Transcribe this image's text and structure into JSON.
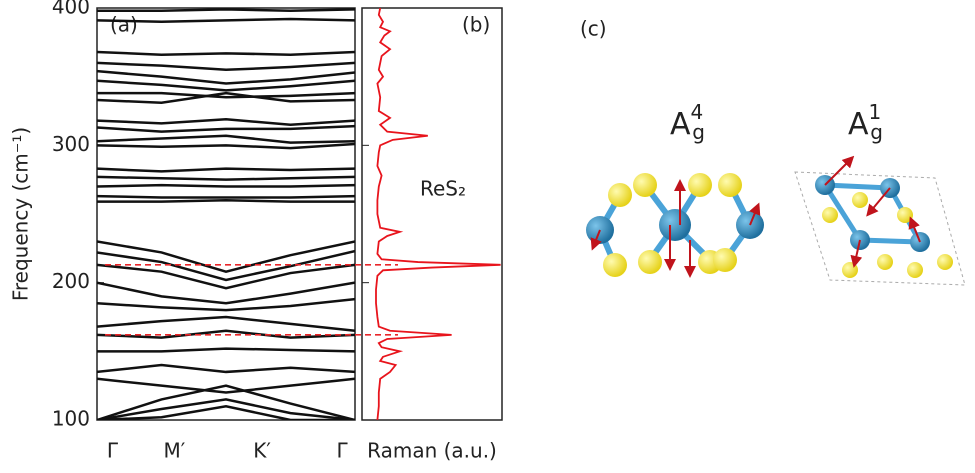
{
  "chart_data": [
    {
      "type": "bands",
      "panel_label": "(a)",
      "ylabel": "Frequency (cm⁻¹)",
      "ylim": [
        100,
        400
      ],
      "yticks": [
        100,
        200,
        300,
        400
      ],
      "xlim": [
        0,
        1
      ],
      "xticks": [
        {
          "value": 0.06,
          "label": "Γ"
        },
        {
          "value": 0.3,
          "label": "M′"
        },
        {
          "value": 0.64,
          "label": "K′"
        },
        {
          "value": 0.95,
          "label": "Γ"
        }
      ],
      "x": [
        0,
        0.25,
        0.5,
        0.75,
        1
      ],
      "color": "#111111",
      "bands": [
        [
          398,
          398,
          399,
          398,
          399
        ],
        [
          391,
          390,
          391,
          392,
          391
        ],
        [
          368,
          366,
          367,
          366,
          368
        ],
        [
          360,
          358,
          355,
          357,
          360
        ],
        [
          354,
          350,
          345,
          348,
          353
        ],
        [
          347,
          344,
          340,
          343,
          347
        ],
        [
          338,
          338,
          335,
          336,
          338
        ],
        [
          333,
          331,
          338,
          332,
          333
        ],
        [
          318,
          316,
          319,
          315,
          318
        ],
        [
          313,
          310,
          312,
          312,
          314
        ],
        [
          303,
          305,
          307,
          302,
          303
        ],
        [
          300,
          299,
          300,
          298,
          301
        ],
        [
          283,
          281,
          283,
          282,
          283
        ],
        [
          277,
          276,
          275,
          276,
          277
        ],
        [
          270,
          271,
          270,
          270,
          271
        ],
        [
          263,
          262,
          262,
          262,
          263
        ],
        [
          259,
          259,
          260,
          259,
          259
        ],
        [
          230,
          222,
          208,
          220,
          230
        ],
        [
          222,
          215,
          202,
          212,
          223
        ],
        [
          213,
          208,
          196,
          207,
          213
        ],
        [
          200,
          190,
          185,
          192,
          200
        ],
        [
          185,
          182,
          180,
          183,
          188
        ],
        [
          168,
          172,
          175,
          170,
          165
        ],
        [
          162,
          160,
          165,
          160,
          162
        ],
        [
          150,
          150,
          152,
          151,
          150
        ],
        [
          135,
          140,
          135,
          138,
          135
        ],
        [
          130,
          125,
          120,
          125,
          130
        ],
        [
          100,
          115,
          125,
          112,
          100
        ],
        [
          100,
          108,
          115,
          105,
          100
        ],
        [
          100,
          102,
          110,
          100,
          100
        ]
      ],
      "mode_lines": [
        213,
        162
      ],
      "mode_line_color": "#e8262a"
    },
    {
      "type": "spectrum",
      "panel_label": "(b)",
      "xlabel": "Raman (a.u.)",
      "annotation": "ReS₂",
      "ylim": [
        100,
        400
      ],
      "xlim": [
        0,
        1
      ],
      "color": "#e8141c",
      "frequencies": [
        100,
        110,
        120,
        130,
        135,
        140,
        143,
        146,
        150,
        153,
        156,
        159,
        162,
        165,
        168,
        175,
        185,
        195,
        205,
        209,
        211,
        213,
        215,
        217,
        221,
        230,
        234,
        237,
        240,
        250,
        260,
        270,
        278,
        285,
        295,
        300,
        304,
        307,
        310,
        315,
        320,
        325,
        335,
        345,
        350,
        355,
        365,
        370,
        375,
        380,
        383,
        386,
        390,
        395,
        400
      ],
      "intensities": [
        0.11,
        0.12,
        0.12,
        0.13,
        0.2,
        0.24,
        0.13,
        0.15,
        0.27,
        0.14,
        0.12,
        0.18,
        0.64,
        0.2,
        0.12,
        0.11,
        0.1,
        0.1,
        0.11,
        0.15,
        0.5,
        0.99,
        0.4,
        0.14,
        0.11,
        0.12,
        0.18,
        0.27,
        0.13,
        0.11,
        0.11,
        0.12,
        0.14,
        0.11,
        0.12,
        0.13,
        0.22,
        0.47,
        0.18,
        0.13,
        0.2,
        0.12,
        0.13,
        0.11,
        0.15,
        0.12,
        0.14,
        0.2,
        0.13,
        0.16,
        0.2,
        0.13,
        0.15,
        0.12,
        0.13
      ]
    }
  ],
  "panel_c": {
    "label": "(c)",
    "modes": [
      {
        "base": "A",
        "sup": "4",
        "sub": "g"
      },
      {
        "base": "A",
        "sup": "1",
        "sub": "g"
      }
    ]
  }
}
